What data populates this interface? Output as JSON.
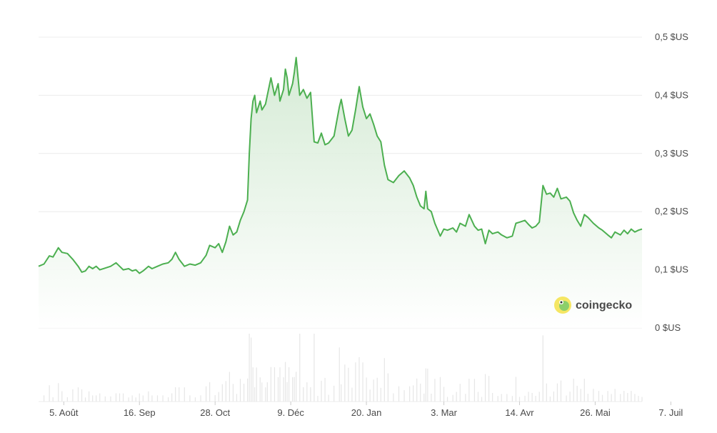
{
  "watermark": {
    "text": "coingecko",
    "icon": "gecko-logo-icon"
  },
  "colors": {
    "line": "#4caf50",
    "area_top": "#cfe8cf",
    "area_bottom": "#ffffff",
    "volume": "#e6e6e6",
    "grid": "#ececec",
    "text": "#4a4a4a"
  },
  "chart_data": {
    "type": "area",
    "title": "",
    "xlabel": "",
    "ylabel": "",
    "ylim": [
      0,
      0.5
    ],
    "y_ticks": [
      {
        "value": 0.5,
        "label": "0,5 $US"
      },
      {
        "value": 0.4,
        "label": "0,4 $US"
      },
      {
        "value": 0.3,
        "label": "0,3 $US"
      },
      {
        "value": 0.2,
        "label": "0,2 $US"
      },
      {
        "value": 0.1,
        "label": "0,1 $US"
      },
      {
        "value": 0.0,
        "label": "0 $US"
      }
    ],
    "x_ticks": [
      {
        "date": "2023-08-05",
        "label": "5. Août"
      },
      {
        "date": "2023-09-16",
        "label": "16. Sep"
      },
      {
        "date": "2023-10-28",
        "label": "28. Oct"
      },
      {
        "date": "2023-12-09",
        "label": "9. Déc"
      },
      {
        "date": "2024-01-20",
        "label": "20. Jan"
      },
      {
        "date": "2024-03-03",
        "label": "3. Mar"
      },
      {
        "date": "2024-04-14",
        "label": "14. Avr"
      },
      {
        "date": "2024-05-26",
        "label": "26. Mai"
      },
      {
        "date": "2024-07-07",
        "label": "7. Juil"
      }
    ],
    "grid": true,
    "legend": "none",
    "series": [
      {
        "points": [
          [
            "2023-07-22",
            0.106
          ],
          [
            "2023-07-25",
            0.11
          ],
          [
            "2023-07-28",
            0.124
          ],
          [
            "2023-07-30",
            0.122
          ],
          [
            "2023-08-02",
            0.138
          ],
          [
            "2023-08-04",
            0.13
          ],
          [
            "2023-08-07",
            0.128
          ],
          [
            "2023-08-10",
            0.118
          ],
          [
            "2023-08-13",
            0.106
          ],
          [
            "2023-08-15",
            0.096
          ],
          [
            "2023-08-17",
            0.098
          ],
          [
            "2023-08-19",
            0.106
          ],
          [
            "2023-08-21",
            0.102
          ],
          [
            "2023-08-23",
            0.106
          ],
          [
            "2023-08-25",
            0.1
          ],
          [
            "2023-08-28",
            0.103
          ],
          [
            "2023-08-31",
            0.106
          ],
          [
            "2023-09-03",
            0.112
          ],
          [
            "2023-09-05",
            0.106
          ],
          [
            "2023-09-07",
            0.1
          ],
          [
            "2023-09-10",
            0.102
          ],
          [
            "2023-09-12",
            0.098
          ],
          [
            "2023-09-14",
            0.1
          ],
          [
            "2023-09-16",
            0.094
          ],
          [
            "2023-09-18",
            0.098
          ],
          [
            "2023-09-21",
            0.106
          ],
          [
            "2023-09-23",
            0.102
          ],
          [
            "2023-09-26",
            0.106
          ],
          [
            "2023-09-29",
            0.11
          ],
          [
            "2023-10-02",
            0.112
          ],
          [
            "2023-10-04",
            0.118
          ],
          [
            "2023-10-06",
            0.13
          ],
          [
            "2023-10-08",
            0.118
          ],
          [
            "2023-10-11",
            0.106
          ],
          [
            "2023-10-14",
            0.11
          ],
          [
            "2023-10-17",
            0.108
          ],
          [
            "2023-10-20",
            0.112
          ],
          [
            "2023-10-23",
            0.125
          ],
          [
            "2023-10-25",
            0.142
          ],
          [
            "2023-10-28",
            0.138
          ],
          [
            "2023-10-30",
            0.145
          ],
          [
            "2023-11-01",
            0.13
          ],
          [
            "2023-11-03",
            0.148
          ],
          [
            "2023-11-05",
            0.175
          ],
          [
            "2023-11-07",
            0.16
          ],
          [
            "2023-11-09",
            0.165
          ],
          [
            "2023-11-11",
            0.185
          ],
          [
            "2023-11-13",
            0.2
          ],
          [
            "2023-11-15",
            0.22
          ],
          [
            "2023-11-16",
            0.3
          ],
          [
            "2023-11-17",
            0.36
          ],
          [
            "2023-11-18",
            0.39
          ],
          [
            "2023-11-19",
            0.4
          ],
          [
            "2023-11-20",
            0.37
          ],
          [
            "2023-11-22",
            0.39
          ],
          [
            "2023-11-23",
            0.375
          ],
          [
            "2023-11-25",
            0.385
          ],
          [
            "2023-11-26",
            0.4
          ],
          [
            "2023-11-28",
            0.43
          ],
          [
            "2023-11-30",
            0.4
          ],
          [
            "2023-12-02",
            0.42
          ],
          [
            "2023-12-03",
            0.39
          ],
          [
            "2023-12-05",
            0.41
          ],
          [
            "2023-12-06",
            0.445
          ],
          [
            "2023-12-07",
            0.43
          ],
          [
            "2023-12-08",
            0.4
          ],
          [
            "2023-12-10",
            0.42
          ],
          [
            "2023-12-11",
            0.44
          ],
          [
            "2023-12-12",
            0.465
          ],
          [
            "2023-12-14",
            0.4
          ],
          [
            "2023-12-16",
            0.41
          ],
          [
            "2023-12-18",
            0.395
          ],
          [
            "2023-12-20",
            0.405
          ],
          [
            "2023-12-22",
            0.32
          ],
          [
            "2023-12-24",
            0.318
          ],
          [
            "2023-12-26",
            0.335
          ],
          [
            "2023-12-28",
            0.315
          ],
          [
            "2023-12-30",
            0.318
          ],
          [
            "2024-01-02",
            0.33
          ],
          [
            "2024-01-05",
            0.38
          ],
          [
            "2024-01-06",
            0.393
          ],
          [
            "2024-01-08",
            0.36
          ],
          [
            "2024-01-10",
            0.33
          ],
          [
            "2024-01-12",
            0.34
          ],
          [
            "2024-01-14",
            0.375
          ],
          [
            "2024-01-16",
            0.415
          ],
          [
            "2024-01-18",
            0.38
          ],
          [
            "2024-01-20",
            0.36
          ],
          [
            "2024-01-22",
            0.368
          ],
          [
            "2024-01-24",
            0.35
          ],
          [
            "2024-01-26",
            0.33
          ],
          [
            "2024-01-28",
            0.32
          ],
          [
            "2024-01-30",
            0.28
          ],
          [
            "2024-02-01",
            0.255
          ],
          [
            "2024-02-04",
            0.25
          ],
          [
            "2024-02-07",
            0.262
          ],
          [
            "2024-02-10",
            0.27
          ],
          [
            "2024-02-13",
            0.258
          ],
          [
            "2024-02-15",
            0.245
          ],
          [
            "2024-02-17",
            0.225
          ],
          [
            "2024-02-19",
            0.21
          ],
          [
            "2024-02-21",
            0.205
          ],
          [
            "2024-02-22",
            0.235
          ],
          [
            "2024-02-23",
            0.205
          ],
          [
            "2024-02-25",
            0.2
          ],
          [
            "2024-02-27",
            0.18
          ],
          [
            "2024-03-01",
            0.158
          ],
          [
            "2024-03-03",
            0.17
          ],
          [
            "2024-03-05",
            0.168
          ],
          [
            "2024-03-08",
            0.172
          ],
          [
            "2024-03-10",
            0.165
          ],
          [
            "2024-03-12",
            0.18
          ],
          [
            "2024-03-15",
            0.175
          ],
          [
            "2024-03-17",
            0.195
          ],
          [
            "2024-03-20",
            0.175
          ],
          [
            "2024-03-22",
            0.168
          ],
          [
            "2024-03-24",
            0.17
          ],
          [
            "2024-03-26",
            0.145
          ],
          [
            "2024-03-28",
            0.168
          ],
          [
            "2024-03-30",
            0.162
          ],
          [
            "2024-04-02",
            0.165
          ],
          [
            "2024-04-04",
            0.16
          ],
          [
            "2024-04-07",
            0.155
          ],
          [
            "2024-04-10",
            0.158
          ],
          [
            "2024-04-12",
            0.18
          ],
          [
            "2024-04-14",
            0.182
          ],
          [
            "2024-04-17",
            0.185
          ],
          [
            "2024-04-19",
            0.178
          ],
          [
            "2024-04-21",
            0.172
          ],
          [
            "2024-04-23",
            0.175
          ],
          [
            "2024-04-25",
            0.182
          ],
          [
            "2024-04-27",
            0.245
          ],
          [
            "2024-04-29",
            0.23
          ],
          [
            "2024-05-01",
            0.232
          ],
          [
            "2024-05-03",
            0.225
          ],
          [
            "2024-05-05",
            0.24
          ],
          [
            "2024-05-07",
            0.222
          ],
          [
            "2024-05-10",
            0.225
          ],
          [
            "2024-05-12",
            0.218
          ],
          [
            "2024-05-14",
            0.198
          ],
          [
            "2024-05-16",
            0.185
          ],
          [
            "2024-05-18",
            0.175
          ],
          [
            "2024-05-20",
            0.195
          ],
          [
            "2024-05-22",
            0.19
          ],
          [
            "2024-05-25",
            0.18
          ],
          [
            "2024-05-28",
            0.172
          ],
          [
            "2024-05-30",
            0.168
          ],
          [
            "2024-06-02",
            0.16
          ],
          [
            "2024-06-04",
            0.155
          ],
          [
            "2024-06-06",
            0.165
          ],
          [
            "2024-06-09",
            0.16
          ],
          [
            "2024-06-11",
            0.168
          ],
          [
            "2024-06-13",
            0.162
          ],
          [
            "2024-06-15",
            0.17
          ],
          [
            "2024-06-17",
            0.165
          ],
          [
            "2024-06-19",
            0.168
          ],
          [
            "2024-06-21",
            0.17
          ]
        ]
      }
    ]
  }
}
